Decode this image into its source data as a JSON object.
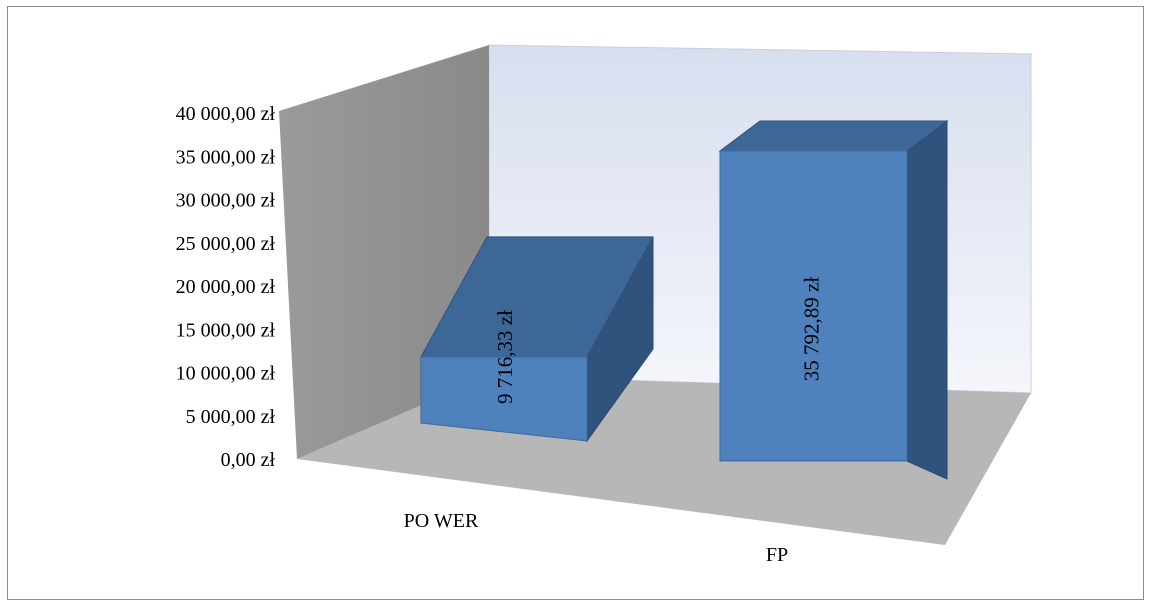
{
  "chart_data": {
    "type": "bar",
    "style": "3d-column",
    "categories": [
      "PO WER",
      "FP"
    ],
    "values": [
      9716.33,
      35792.89
    ],
    "value_labels": [
      "9 716,33 zł",
      "35 792,89 zł"
    ],
    "ylim": [
      0,
      40000
    ],
    "y_ticks": [
      "0,00 zł",
      "5 000,00 zł",
      "10 000,00 zł",
      "15 000,00 zł",
      "20 000,00 zł",
      "25 000,00 zł",
      "30 000,00 zł",
      "35 000,00 zł",
      "40 000,00 zł"
    ],
    "title": "",
    "xlabel": "",
    "ylabel": "",
    "grid": false,
    "legend": "none",
    "colors": {
      "bar_front": "#4f81bd",
      "bar_top": "#3d6796",
      "bar_side": "#2f537d",
      "back_wall": "#e6ebf5",
      "side_wall": "#969696",
      "floor": "#b7b7b7"
    }
  }
}
